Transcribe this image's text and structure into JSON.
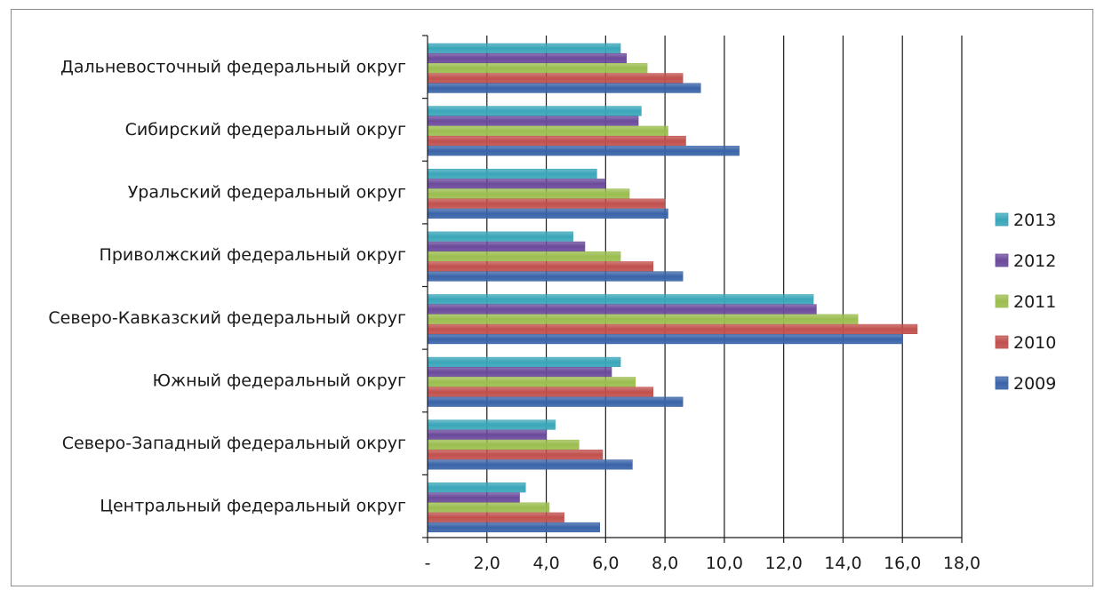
{
  "chart_data": {
    "type": "bar",
    "orientation": "horizontal",
    "categories": [
      "Дальневосточный федеральный округ",
      "Сибирский федеральный округ",
      "Уральский федеральный округ",
      "Приволжский федеральный округ",
      "Северо-Кавказский федеральный округ",
      "Южный федеральный округ",
      "Северо-Западный федеральный округ",
      "Центральный федеральный округ"
    ],
    "series": [
      {
        "name": "2013",
        "color": "#3aa6b9",
        "values": [
          6.5,
          7.2,
          5.7,
          4.9,
          13.0,
          6.5,
          4.3,
          3.3
        ]
      },
      {
        "name": "2012",
        "color": "#6b4a9b",
        "values": [
          6.7,
          7.1,
          6.0,
          5.3,
          13.1,
          6.2,
          4.0,
          3.1
        ]
      },
      {
        "name": "2011",
        "color": "#9bbd4f",
        "values": [
          7.4,
          8.1,
          6.8,
          6.5,
          14.5,
          7.0,
          5.1,
          4.1
        ]
      },
      {
        "name": "2010",
        "color": "#c0504d",
        "values": [
          8.6,
          8.7,
          8.0,
          7.6,
          16.5,
          7.6,
          5.9,
          4.6
        ]
      },
      {
        "name": "2009",
        "color": "#3a64a8",
        "values": [
          9.2,
          10.5,
          8.1,
          8.6,
          16.0,
          8.6,
          6.9,
          5.8
        ]
      }
    ],
    "xlim": [
      0,
      18
    ],
    "xticks": [
      0,
      2,
      4,
      6,
      8,
      10,
      12,
      14,
      16,
      18
    ],
    "xtick_labels": [
      "-",
      "2,0",
      "4,0",
      "6,0",
      "8,0",
      "10,0",
      "12,0",
      "14,0",
      "16,0",
      "18,0"
    ],
    "grid": "vertical",
    "legend_position": "right",
    "legend_order": [
      "2013",
      "2012",
      "2011",
      "2010",
      "2009"
    ],
    "title": "",
    "xlabel": "",
    "ylabel": ""
  }
}
